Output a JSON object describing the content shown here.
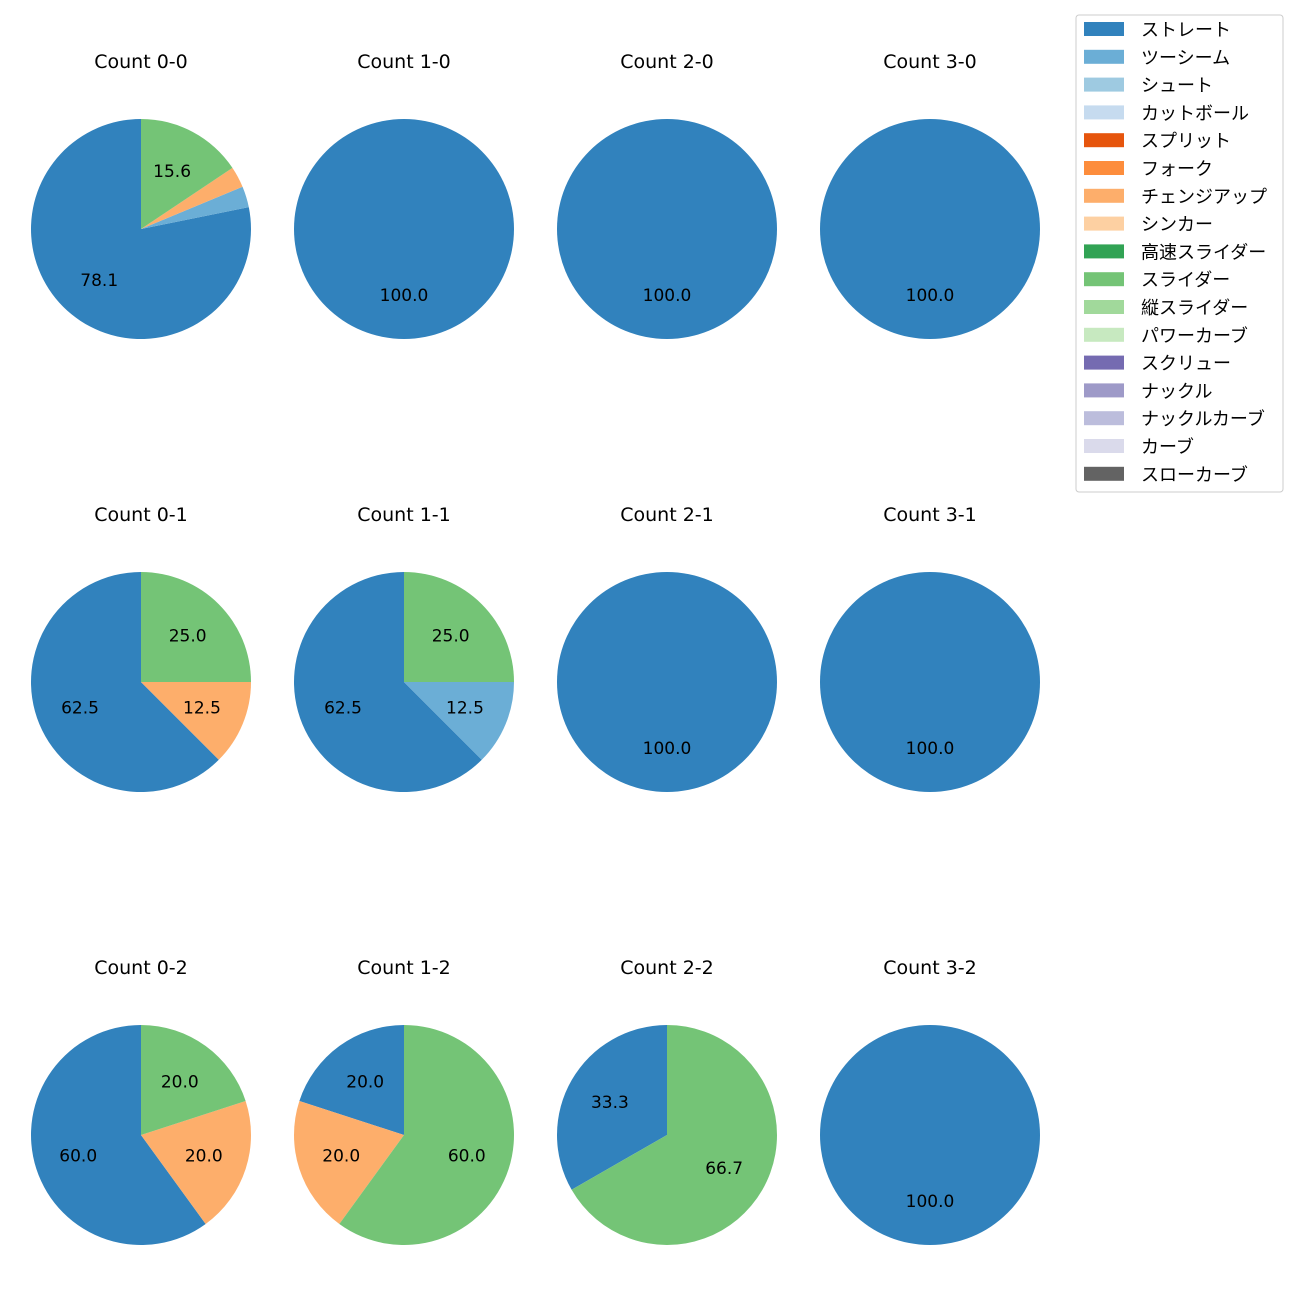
{
  "chart_data": {
    "type": "pie",
    "legend": {
      "placement": "top-right",
      "entries": [
        {
          "label": "ストレート",
          "color": "#3182bd"
        },
        {
          "label": "ツーシーム",
          "color": "#6baed6"
        },
        {
          "label": "シュート",
          "color": "#9ecae1"
        },
        {
          "label": "カットボール",
          "color": "#c6dbef"
        },
        {
          "label": "スプリット",
          "color": "#e6550d"
        },
        {
          "label": "フォーク",
          "color": "#fd8d3c"
        },
        {
          "label": "チェンジアップ",
          "color": "#fdae6b"
        },
        {
          "label": "シンカー",
          "color": "#fdd0a2"
        },
        {
          "label": "高速スライダー",
          "color": "#31a354"
        },
        {
          "label": "スライダー",
          "color": "#74c476"
        },
        {
          "label": "縦スライダー",
          "color": "#a1d99b"
        },
        {
          "label": "パワーカーブ",
          "color": "#c7e9c0"
        },
        {
          "label": "スクリュー",
          "color": "#756bb1"
        },
        {
          "label": "ナックル",
          "color": "#9e9ac8"
        },
        {
          "label": "ナックルカーブ",
          "color": "#bcbddc"
        },
        {
          "label": "カーブ",
          "color": "#dadaeb"
        },
        {
          "label": "スローカーブ",
          "color": "#636363"
        }
      ]
    },
    "pies": [
      {
        "title": "Count 0-0",
        "slices": [
          {
            "pitch": "ストレート",
            "value": 78.1,
            "label": "78.1"
          },
          {
            "pitch": "ツーシーム",
            "value": 3.1,
            "label": ""
          },
          {
            "pitch": "チェンジアップ",
            "value": 3.1,
            "label": ""
          },
          {
            "pitch": "スライダー",
            "value": 15.6,
            "label": "15.6"
          }
        ]
      },
      {
        "title": "Count 1-0",
        "slices": [
          {
            "pitch": "ストレート",
            "value": 100.0,
            "label": "100.0"
          }
        ]
      },
      {
        "title": "Count 2-0",
        "slices": [
          {
            "pitch": "ストレート",
            "value": 100.0,
            "label": "100.0"
          }
        ]
      },
      {
        "title": "Count 3-0",
        "slices": [
          {
            "pitch": "ストレート",
            "value": 100.0,
            "label": "100.0"
          }
        ]
      },
      {
        "title": "Count 0-1",
        "slices": [
          {
            "pitch": "ストレート",
            "value": 62.5,
            "label": "62.5"
          },
          {
            "pitch": "チェンジアップ",
            "value": 12.5,
            "label": "12.5"
          },
          {
            "pitch": "スライダー",
            "value": 25.0,
            "label": "25.0"
          }
        ]
      },
      {
        "title": "Count 1-1",
        "slices": [
          {
            "pitch": "ストレート",
            "value": 62.5,
            "label": "62.5"
          },
          {
            "pitch": "ツーシーム",
            "value": 12.5,
            "label": "12.5"
          },
          {
            "pitch": "スライダー",
            "value": 25.0,
            "label": "25.0"
          }
        ]
      },
      {
        "title": "Count 2-1",
        "slices": [
          {
            "pitch": "ストレート",
            "value": 100.0,
            "label": "100.0"
          }
        ]
      },
      {
        "title": "Count 3-1",
        "slices": [
          {
            "pitch": "ストレート",
            "value": 100.0,
            "label": "100.0"
          }
        ]
      },
      {
        "title": "Count 0-2",
        "slices": [
          {
            "pitch": "ストレート",
            "value": 60.0,
            "label": "60.0"
          },
          {
            "pitch": "チェンジアップ",
            "value": 20.0,
            "label": "20.0"
          },
          {
            "pitch": "スライダー",
            "value": 20.0,
            "label": "20.0"
          }
        ]
      },
      {
        "title": "Count 1-2",
        "slices": [
          {
            "pitch": "ストレート",
            "value": 20.0,
            "label": "20.0"
          },
          {
            "pitch": "チェンジアップ",
            "value": 20.0,
            "label": "20.0"
          },
          {
            "pitch": "スライダー",
            "value": 60.0,
            "label": "60.0"
          }
        ]
      },
      {
        "title": "Count 2-2",
        "slices": [
          {
            "pitch": "ストレート",
            "value": 33.3,
            "label": "33.3"
          },
          {
            "pitch": "スライダー",
            "value": 66.7,
            "label": "66.7"
          }
        ]
      },
      {
        "title": "Count 3-2",
        "slices": [
          {
            "pitch": "ストレート",
            "value": 100.0,
            "label": "100.0"
          }
        ]
      }
    ]
  }
}
